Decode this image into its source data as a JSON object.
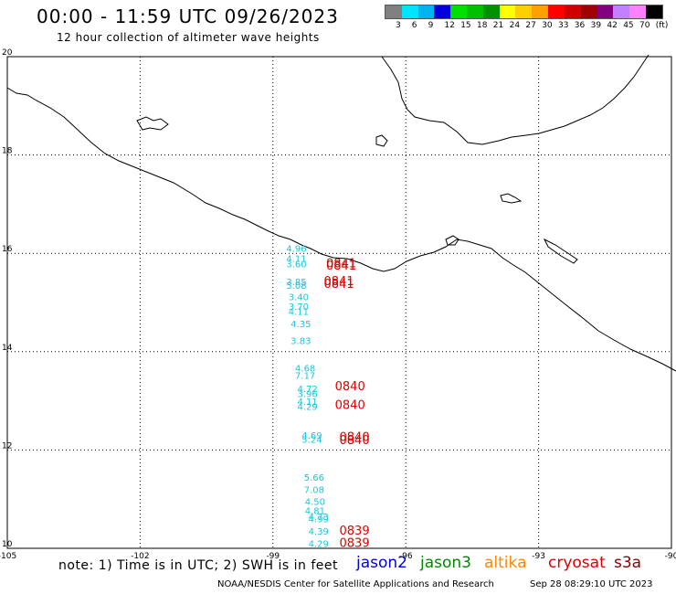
{
  "header": {
    "title": "00:00 - 11:59 UTC 09/26/2023",
    "subtitle": "12 hour collection of altimeter wave heights"
  },
  "legend": {
    "colors": [
      "#808080",
      "#00e5ff",
      "#00b4f0",
      "#0000dd",
      "#00e000",
      "#00c000",
      "#009000",
      "#ffff00",
      "#ffd000",
      "#ffa000",
      "#ff0000",
      "#d00000",
      "#a00000",
      "#800080",
      "#c080ff",
      "#ff80ff",
      "#000000"
    ],
    "labels": [
      "3",
      "6",
      "9",
      "12",
      "15",
      "18",
      "21",
      "24",
      "27",
      "30",
      "33",
      "36",
      "39",
      "42",
      "45",
      "70",
      "(ft)"
    ]
  },
  "axes": {
    "x_ticks": [
      "-105",
      "-102",
      "-99",
      "-96",
      "-93",
      "-90"
    ],
    "y_ticks": [
      "20",
      "18",
      "16",
      "14",
      "12",
      "10"
    ],
    "lon_range": [
      -105,
      -90
    ],
    "lat_range": [
      10,
      20
    ]
  },
  "observations": [
    {
      "lon": -98.7,
      "lat": 16.03,
      "swh": "4.96"
    },
    {
      "lon": -98.7,
      "lat": 15.83,
      "swh": "4.11"
    },
    {
      "lon": -98.7,
      "lat": 15.72,
      "swh": "3.60"
    },
    {
      "lon": -98.7,
      "lat": 15.35,
      "swh": "3.85"
    },
    {
      "lon": -98.7,
      "lat": 15.28,
      "swh": "5.08"
    },
    {
      "lon": -98.65,
      "lat": 15.05,
      "swh": "3.40"
    },
    {
      "lon": -98.65,
      "lat": 14.85,
      "swh": "3.70"
    },
    {
      "lon": -98.65,
      "lat": 14.75,
      "swh": "4.11"
    },
    {
      "lon": -98.6,
      "lat": 14.5,
      "swh": "4.35"
    },
    {
      "lon": -98.6,
      "lat": 14.15,
      "swh": "3.83"
    },
    {
      "lon": -98.5,
      "lat": 13.6,
      "swh": "4.68"
    },
    {
      "lon": -98.5,
      "lat": 13.45,
      "swh": "7.17"
    },
    {
      "lon": -98.45,
      "lat": 13.18,
      "swh": "4.72"
    },
    {
      "lon": -98.45,
      "lat": 13.08,
      "swh": "3.96"
    },
    {
      "lon": -98.45,
      "lat": 12.92,
      "swh": "4.11"
    },
    {
      "lon": -98.45,
      "lat": 12.82,
      "swh": "4.29"
    },
    {
      "lon": -98.35,
      "lat": 12.23,
      "swh": "4.69"
    },
    {
      "lon": -98.35,
      "lat": 12.15,
      "swh": "5.24"
    },
    {
      "lon": -98.3,
      "lat": 11.38,
      "swh": "5.66"
    },
    {
      "lon": -98.3,
      "lat": 11.12,
      "swh": "7.08"
    },
    {
      "lon": -98.28,
      "lat": 10.88,
      "swh": "4.50"
    },
    {
      "lon": -98.28,
      "lat": 10.7,
      "swh": "4.81"
    },
    {
      "lon": -98.2,
      "lat": 10.58,
      "swh": "4.73"
    },
    {
      "lon": -98.2,
      "lat": 10.53,
      "swh": "4.99"
    },
    {
      "lon": -98.2,
      "lat": 10.28,
      "swh": "4.39"
    },
    {
      "lon": -98.2,
      "lat": 10.03,
      "swh": "4.29"
    }
  ],
  "times": [
    {
      "lon": -97.8,
      "lat": 15.72,
      "text": "0841"
    },
    {
      "lon": -97.8,
      "lat": 15.67,
      "text": "0841"
    },
    {
      "lon": -97.85,
      "lat": 15.35,
      "text": "0841"
    },
    {
      "lon": -97.85,
      "lat": 15.3,
      "text": "0841"
    },
    {
      "lon": -97.6,
      "lat": 13.22,
      "text": "0840"
    },
    {
      "lon": -97.6,
      "lat": 12.83,
      "text": "0840"
    },
    {
      "lon": -97.5,
      "lat": 12.18,
      "text": "0840"
    },
    {
      "lon": -97.5,
      "lat": 12.12,
      "text": "0840"
    },
    {
      "lon": -97.5,
      "lat": 10.28,
      "text": "0839"
    },
    {
      "lon": -97.5,
      "lat": 10.03,
      "text": "0839"
    }
  ],
  "footer": {
    "note": "note: 1) Time is in UTC; 2) SWH is in feet",
    "satellites": [
      {
        "name": "jason2",
        "color": "#0000dd"
      },
      {
        "name": "jason3",
        "color": "#008800"
      },
      {
        "name": "altika",
        "color": "#ff8800"
      },
      {
        "name": "cryosat",
        "color": "#dd0000"
      },
      {
        "name": "s3a",
        "color": "#880000"
      }
    ],
    "credit": "NOAA/NESDIS Center for Satellite Applications and Research",
    "timestamp": "Sep 28 08:29:10 UTC 2023"
  }
}
